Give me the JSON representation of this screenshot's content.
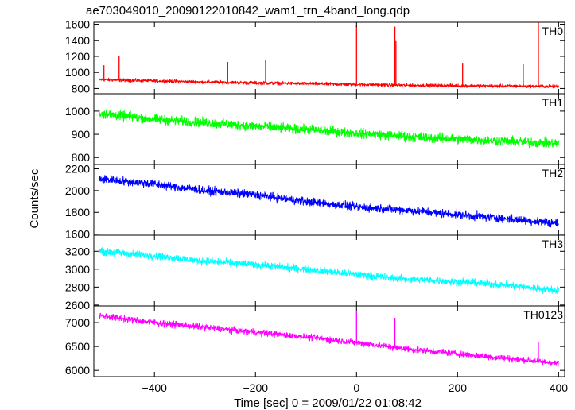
{
  "chart_data": {
    "type": "line",
    "title": "ae703049010_20090122010842_wam1_trn_4band_long.qdp",
    "xlabel": "Time [sec] 0 = 2009/01/22 01:08:42",
    "ylabel": "Counts/sec",
    "xlim": [
      -520,
      412
    ],
    "x_ticks": [
      -400,
      -200,
      0,
      200,
      400
    ],
    "x_tick_labels": [
      "−400",
      "−200",
      "0",
      "200",
      "400"
    ],
    "panels": [
      {
        "name": "TH0",
        "color": "#ff0000",
        "ylim": [
          735,
          1625
        ],
        "y_ticks": [
          800,
          1000,
          1200,
          1400,
          1600
        ],
        "y_tick_labels": [
          "800",
          "1000",
          "1200",
          "1400",
          "1600"
        ],
        "x": [
          -510,
          -400,
          -300,
          -200,
          -100,
          0,
          100,
          200,
          300,
          400
        ],
        "y": [
          910,
          895,
          880,
          870,
          860,
          850,
          840,
          835,
          830,
          825
        ],
        "noise": 30,
        "spikes": [
          [
            -500,
            1090
          ],
          [
            -470,
            1210
          ],
          [
            -255,
            1130
          ],
          [
            -180,
            1150
          ],
          [
            0,
            1580
          ],
          [
            76,
            1570
          ],
          [
            78,
            1400
          ],
          [
            210,
            1120
          ],
          [
            330,
            1110
          ],
          [
            360,
            1620
          ]
        ]
      },
      {
        "name": "TH1",
        "color": "#00ff00",
        "ylim": [
          770,
          1075
        ],
        "y_ticks": [
          800,
          900,
          1000
        ],
        "y_tick_labels": [
          "800",
          "900",
          "1000"
        ],
        "x": [
          -510,
          -400,
          -300,
          -200,
          -100,
          0,
          100,
          200,
          300,
          400
        ],
        "y": [
          990,
          965,
          950,
          935,
          920,
          905,
          890,
          880,
          870,
          860
        ],
        "noise": 30,
        "spikes": []
      },
      {
        "name": "TH2",
        "color": "#0000ff",
        "ylim": [
          1590,
          2240
        ],
        "y_ticks": [
          1600,
          1800,
          2000,
          2200
        ],
        "y_tick_labels": [
          "1600",
          "1800",
          "2000",
          "2200"
        ],
        "x": [
          -510,
          -400,
          -300,
          -200,
          -100,
          0,
          100,
          200,
          300,
          400
        ],
        "y": [
          2110,
          2060,
          2000,
          1960,
          1900,
          1850,
          1820,
          1780,
          1740,
          1700
        ],
        "noise": 55,
        "spikes": []
      },
      {
        "name": "TH3",
        "color": "#00ffff",
        "ylim": [
          2590,
          3380
        ],
        "y_ticks": [
          2600,
          2800,
          3000,
          3200
        ],
        "y_tick_labels": [
          "2600",
          "2800",
          "3000",
          "3200"
        ],
        "x": [
          -510,
          -400,
          -300,
          -200,
          -100,
          0,
          100,
          200,
          300,
          400
        ],
        "y": [
          3200,
          3150,
          3090,
          3050,
          3000,
          2940,
          2890,
          2860,
          2820,
          2760
        ],
        "noise": 60,
        "spikes": []
      },
      {
        "name": "TH0123",
        "color": "#ff00ff",
        "ylim": [
          5870,
          7350
        ],
        "y_ticks": [
          6000,
          6500,
          7000
        ],
        "y_tick_labels": [
          "6000",
          "6500",
          "7000"
        ],
        "x": [
          -510,
          -400,
          -300,
          -200,
          -100,
          0,
          100,
          200,
          300,
          400
        ],
        "y": [
          7150,
          7000,
          6900,
          6800,
          6700,
          6580,
          6450,
          6350,
          6250,
          6150
        ],
        "noise": 95,
        "spikes": [
          [
            0,
            7250
          ],
          [
            76,
            7100
          ],
          [
            360,
            6600
          ]
        ]
      }
    ]
  }
}
